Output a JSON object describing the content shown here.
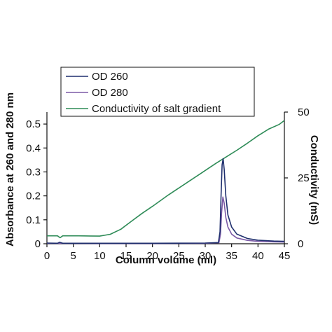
{
  "chart_data": {
    "type": "line",
    "xlabel": "Column volume (ml)",
    "ylabel": "Absorbance at 260 and 280 nm",
    "y2label": "Conductivity (mS)",
    "xlim": [
      0,
      45
    ],
    "ylim": [
      0,
      0.55
    ],
    "y2lim": [
      0,
      50
    ],
    "x_ticks": [
      "0",
      "5",
      "10",
      "15",
      "20",
      "25",
      "30",
      "35",
      "40",
      "45"
    ],
    "y_ticks": [
      "0",
      "0.1",
      "0.2",
      "0.3",
      "0.4",
      "0.5"
    ],
    "y2_ticks": [
      "0",
      "25",
      "50"
    ],
    "grid": false,
    "legend_position": "top-left",
    "series": [
      {
        "name": "OD 260",
        "axis": "left",
        "color": "#1f2f6e",
        "points": [
          [
            0,
            0.003
          ],
          [
            2,
            0.002
          ],
          [
            2.4,
            0.006
          ],
          [
            3,
            0.002
          ],
          [
            10,
            0.002
          ],
          [
            20,
            0.002
          ],
          [
            30,
            0.003
          ],
          [
            32.5,
            0.005
          ],
          [
            32.8,
            0.05
          ],
          [
            33,
            0.2
          ],
          [
            33.2,
            0.33
          ],
          [
            33.4,
            0.355
          ],
          [
            33.6,
            0.31
          ],
          [
            33.9,
            0.2
          ],
          [
            34.3,
            0.12
          ],
          [
            35,
            0.07
          ],
          [
            36,
            0.04
          ],
          [
            38,
            0.022
          ],
          [
            40,
            0.015
          ],
          [
            43,
            0.011
          ],
          [
            45,
            0.01
          ]
        ]
      },
      {
        "name": "OD 280",
        "axis": "left",
        "color": "#7b5aa6",
        "points": [
          [
            0,
            0.002
          ],
          [
            10,
            0.001
          ],
          [
            20,
            0.001
          ],
          [
            30,
            0.002
          ],
          [
            32.6,
            0.004
          ],
          [
            32.9,
            0.04
          ],
          [
            33.1,
            0.13
          ],
          [
            33.35,
            0.195
          ],
          [
            33.6,
            0.17
          ],
          [
            33.9,
            0.11
          ],
          [
            34.3,
            0.07
          ],
          [
            35,
            0.04
          ],
          [
            36,
            0.024
          ],
          [
            38,
            0.014
          ],
          [
            40,
            0.01
          ],
          [
            43,
            0.008
          ],
          [
            45,
            0.007
          ]
        ]
      },
      {
        "name": "Conductivity of salt gradient",
        "axis": "right",
        "color": "#2e8b57",
        "points": [
          [
            0,
            3
          ],
          [
            2,
            3
          ],
          [
            2.5,
            2.3
          ],
          [
            3,
            3
          ],
          [
            6,
            3
          ],
          [
            10,
            2.9
          ],
          [
            12,
            3.6
          ],
          [
            14,
            5.5
          ],
          [
            16,
            8.5
          ],
          [
            18,
            11.5
          ],
          [
            20,
            14.2
          ],
          [
            23,
            18.5
          ],
          [
            26,
            22.5
          ],
          [
            29,
            26.5
          ],
          [
            32,
            30.5
          ],
          [
            34,
            33
          ],
          [
            36,
            35.5
          ],
          [
            38,
            38.2
          ],
          [
            40,
            41
          ],
          [
            42,
            43.5
          ],
          [
            44,
            45.3
          ],
          [
            45,
            46.8
          ]
        ]
      }
    ]
  }
}
